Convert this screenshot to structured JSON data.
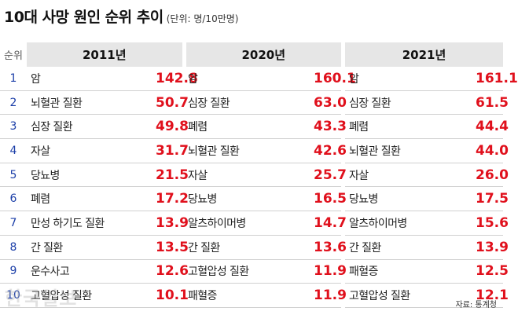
{
  "title": "10대 사망 원인 순위 추이",
  "unit": "(단위: 명/10만명)",
  "header": {
    "rank": "순위",
    "y2011": "2011년",
    "y2020": "2020년",
    "y2021": "2021년"
  },
  "rows": [
    {
      "rank": "1",
      "n2011": "암",
      "v2011": "142.8",
      "n2020": "암",
      "v2020": "160.1",
      "n2021": "암",
      "v2021": "161.1"
    },
    {
      "rank": "2",
      "n2011": "뇌혈관 질환",
      "v2011": "50.7",
      "n2020": "심장 질환",
      "v2020": "63.0",
      "n2021": "심장 질환",
      "v2021": "61.5"
    },
    {
      "rank": "3",
      "n2011": "심장 질환",
      "v2011": "49.8",
      "n2020": "폐렴",
      "v2020": "43.3",
      "n2021": "폐렴",
      "v2021": "44.4"
    },
    {
      "rank": "4",
      "n2011": "자살",
      "v2011": "31.7",
      "n2020": "뇌혈관 질환",
      "v2020": "42.6",
      "n2021": "뇌혈관 질환",
      "v2021": "44.0"
    },
    {
      "rank": "5",
      "n2011": "당뇨병",
      "v2011": "21.5",
      "n2020": "자살",
      "v2020": "25.7",
      "n2021": "자살",
      "v2021": "26.0"
    },
    {
      "rank": "6",
      "n2011": "폐렴",
      "v2011": "17.2",
      "n2020": "당뇨병",
      "v2020": "16.5",
      "n2021": "당뇨병",
      "v2021": "17.5"
    },
    {
      "rank": "7",
      "n2011": "만성 하기도 질환",
      "v2011": "13.9",
      "n2020": "알츠하이머병",
      "v2020": "14.7",
      "n2021": "알츠하이머병",
      "v2021": "15.6"
    },
    {
      "rank": "8",
      "n2011": "간 질환",
      "v2011": "13.5",
      "n2020": "간 질환",
      "v2020": "13.6",
      "n2021": "간 질환",
      "v2021": "13.9"
    },
    {
      "rank": "9",
      "n2011": "운수사고",
      "v2011": "12.6",
      "n2020": "고혈압성 질환",
      "v2020": "11.9",
      "n2021": "패혈증",
      "v2021": "12.5"
    },
    {
      "rank": "10",
      "n2011": "고혈압성 질환",
      "v2011": "10.1",
      "n2020": "패혈증",
      "v2020": "11.9",
      "n2021": "고혈압성 질환",
      "v2021": "12.1"
    }
  ],
  "source": "자료: 통계청",
  "watermark": "한국일보"
}
